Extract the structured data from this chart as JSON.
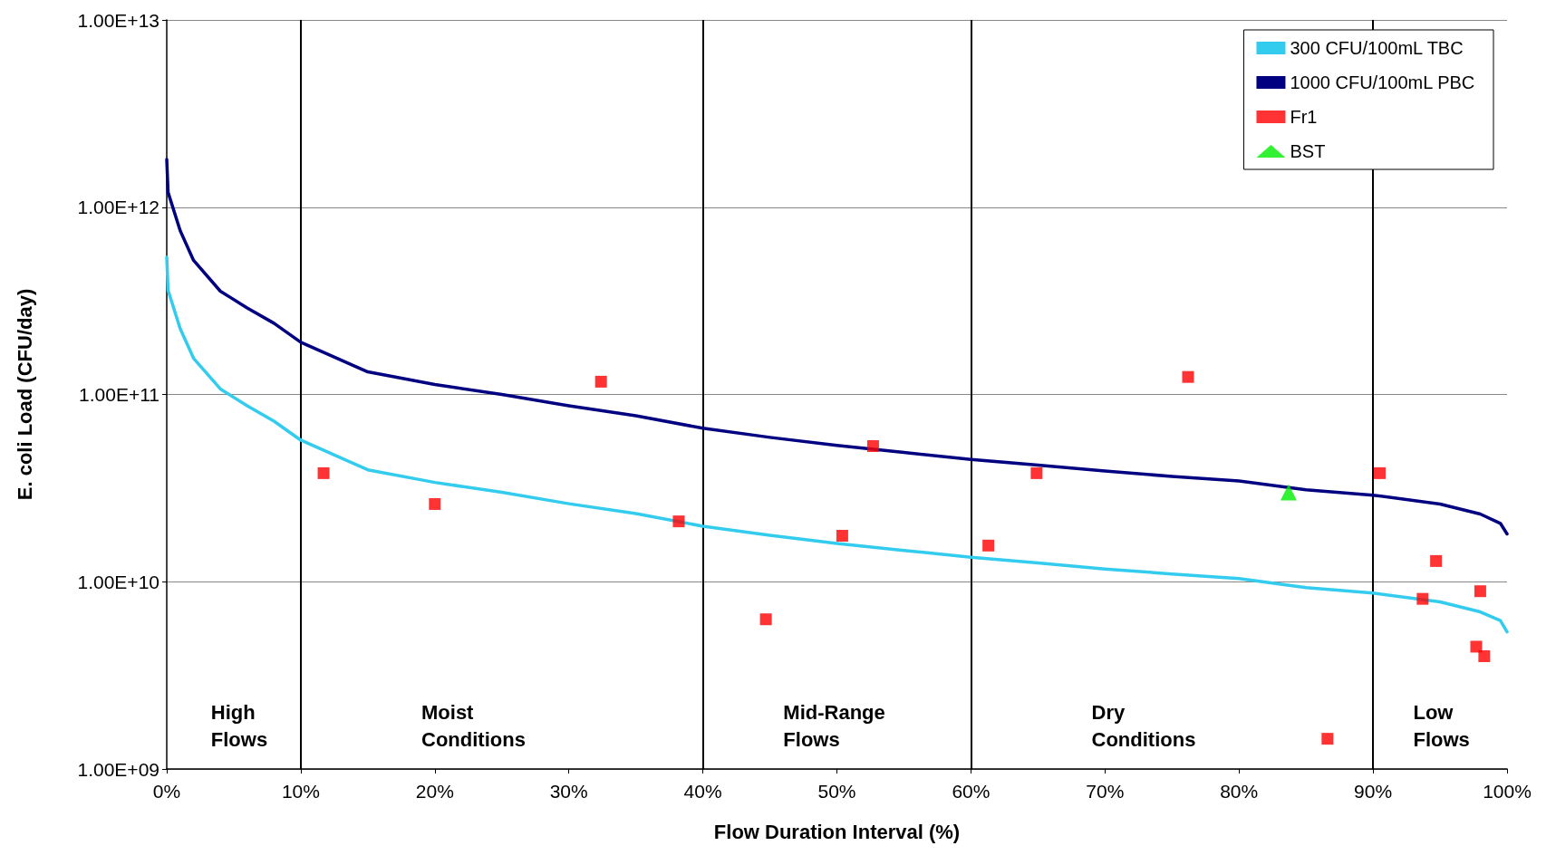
{
  "chart_data": {
    "type": "line",
    "xlabel": "Flow Duration Interval (%)",
    "ylabel": "E. coli Load (CFU/day)",
    "log": "y",
    "grid": "y",
    "legend": "top right",
    "xlim": [
      0,
      100
    ],
    "xticks": [
      {
        "value": 0,
        "label": "0%"
      },
      {
        "value": 10,
        "label": "10%"
      },
      {
        "value": 20,
        "label": "20%"
      },
      {
        "value": 30,
        "label": "30%"
      },
      {
        "value": 40,
        "label": "40%"
      },
      {
        "value": 50,
        "label": "50%"
      },
      {
        "value": 60,
        "label": "60%"
      },
      {
        "value": 70,
        "label": "70%"
      },
      {
        "value": 80,
        "label": "80%"
      },
      {
        "value": 90,
        "label": "90%"
      },
      {
        "value": 100,
        "label": "100%"
      }
    ],
    "ylim": [
      1000000000,
      10000000000000
    ],
    "yticks": [
      {
        "value": 1000000000,
        "label": "1.00E+09"
      },
      {
        "value": 10000000000,
        "label": "1.00E+10"
      },
      {
        "value": 100000000000,
        "label": "1.00E+11"
      },
      {
        "value": 1000000000000,
        "label": "1.00E+12"
      },
      {
        "value": 10000000000000,
        "label": "1.00E+13"
      }
    ],
    "series": [
      {
        "name": "300 CFU/100mL TBC",
        "color": "#33ccee",
        "line_style": "solid",
        "marker": "none",
        "x": [
          0,
          0.1,
          1,
          2,
          4,
          6,
          8,
          10,
          15,
          20,
          25,
          30,
          35,
          40,
          45,
          50,
          55,
          60,
          65,
          70,
          75,
          80,
          85,
          90,
          95,
          98,
          99.5,
          100
        ],
        "values": [
          540000000000,
          360000000000,
          225000000000,
          156000000000,
          107000000000,
          87000000000,
          72000000000,
          57000000000,
          39600000000,
          33900000000,
          30000000000,
          26100000000,
          23100000000,
          19800000000,
          17700000000,
          16000000000,
          14700000000,
          13500000000,
          12600000000,
          11700000000,
          11000000000,
          10400000000,
          9300000000,
          8700000000,
          7800000000,
          6900000000,
          6200000000,
          5400000000
        ]
      },
      {
        "name": "1000 CFU/100mL PBC",
        "color": "#000080",
        "line_style": "solid",
        "marker": "none",
        "x": [
          0,
          0.1,
          1,
          2,
          4,
          6,
          8,
          10,
          15,
          20,
          25,
          30,
          35,
          40,
          45,
          50,
          55,
          60,
          65,
          70,
          75,
          80,
          85,
          90,
          95,
          98,
          99.5,
          100
        ],
        "values": [
          1800000000000,
          1200000000000,
          750000000000,
          520000000000,
          356000000000,
          290000000000,
          240000000000,
          190000000000,
          132000000000,
          113000000000,
          100000000000,
          87000000000,
          77000000000,
          66000000000,
          59000000000,
          53500000000,
          49000000000,
          45000000000,
          42000000000,
          39000000000,
          36500000000,
          34500000000,
          31000000000,
          29000000000,
          26000000000,
          23000000000,
          20500000000,
          18000000000
        ]
      },
      {
        "name": "Fr1",
        "type": "scatter",
        "color": "#ff0000",
        "marker": "square",
        "x": [
          11.7,
          20.0,
          32.4,
          38.2,
          44.7,
          50.4,
          52.7,
          61.3,
          64.9,
          76.2,
          86.6,
          90.5,
          93.7,
          94.7,
          98.0,
          97.7,
          98.3
        ],
        "values": [
          38000000000,
          26000000000,
          117000000000,
          21000000000,
          6300000000,
          17600000000,
          53000000000,
          15600000000,
          38000000000,
          124000000000,
          1450000000,
          38000000000,
          8100000000,
          12900000000,
          8900000000,
          4500000000,
          4000000000
        ]
      },
      {
        "name": "BST",
        "type": "scatter",
        "color": "#00ee00",
        "marker": "triangle",
        "x": [
          83.7
        ],
        "values": [
          30000000000
        ]
      }
    ],
    "ref_lines": [
      {
        "axis": "x",
        "value": 10,
        "color": "#000000"
      },
      {
        "axis": "x",
        "value": 40,
        "color": "#000000"
      },
      {
        "axis": "x",
        "value": 60,
        "color": "#000000"
      },
      {
        "axis": "x",
        "value": 90,
        "color": "#000000"
      }
    ],
    "annotations": [
      "High\nFlows",
      "Moist\nConditions",
      "Mid-Range\nFlows",
      "Dry\nConditions",
      "Low\nFlows"
    ]
  }
}
